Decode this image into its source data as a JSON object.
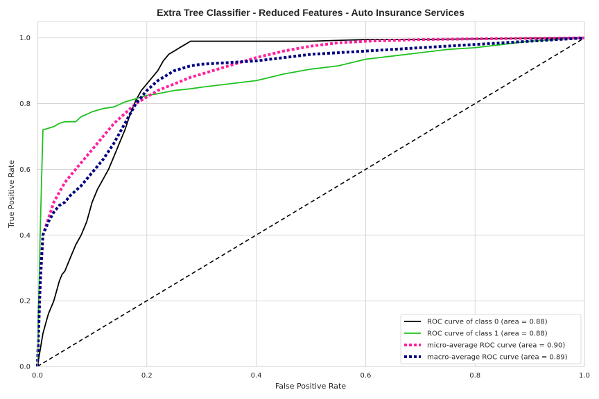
{
  "chart_data": {
    "type": "line",
    "title": "Extra Tree Classifier - Reduced Features - Auto Insurance Services",
    "xlabel": "False Positive Rate",
    "ylabel": "True Positive Rate",
    "xlim": [
      0.0,
      1.0
    ],
    "ylim": [
      0.0,
      1.05
    ],
    "xticks": [
      "0.0",
      "0.2",
      "0.4",
      "0.6",
      "0.8",
      "1.0"
    ],
    "yticks": [
      "0.0",
      "0.2",
      "0.4",
      "0.6",
      "0.8",
      "1.0"
    ],
    "grid": true,
    "legend_position": "lower-right",
    "series": [
      {
        "name": "ROC curve of class 0 (area = 0.88)",
        "color": "#000000",
        "style": "solid",
        "x": [
          0.0,
          0.005,
          0.01,
          0.015,
          0.02,
          0.03,
          0.04,
          0.045,
          0.05,
          0.06,
          0.07,
          0.08,
          0.09,
          0.1,
          0.11,
          0.12,
          0.13,
          0.14,
          0.15,
          0.16,
          0.17,
          0.18,
          0.19,
          0.2,
          0.21,
          0.22,
          0.23,
          0.24,
          0.25,
          0.26,
          0.27,
          0.28,
          0.3,
          0.4,
          0.5,
          0.6,
          0.7,
          0.8,
          0.9,
          1.0
        ],
        "y": [
          0.0,
          0.05,
          0.1,
          0.13,
          0.16,
          0.2,
          0.26,
          0.28,
          0.29,
          0.33,
          0.37,
          0.4,
          0.44,
          0.5,
          0.54,
          0.57,
          0.6,
          0.64,
          0.68,
          0.72,
          0.77,
          0.81,
          0.84,
          0.86,
          0.88,
          0.9,
          0.93,
          0.95,
          0.96,
          0.97,
          0.98,
          0.99,
          0.99,
          0.99,
          0.99,
          0.995,
          0.995,
          0.997,
          0.999,
          1.0
        ]
      },
      {
        "name": "ROC curve of class 1 (area = 0.88)",
        "color": "#1fc11f",
        "style": "solid",
        "x": [
          0.0,
          0.005,
          0.01,
          0.02,
          0.03,
          0.04,
          0.05,
          0.07,
          0.08,
          0.1,
          0.12,
          0.14,
          0.16,
          0.18,
          0.2,
          0.22,
          0.25,
          0.28,
          0.3,
          0.35,
          0.4,
          0.45,
          0.5,
          0.55,
          0.6,
          0.65,
          0.7,
          0.75,
          0.8,
          0.85,
          0.9,
          1.0
        ],
        "y": [
          0.0,
          0.4,
          0.72,
          0.725,
          0.73,
          0.74,
          0.745,
          0.745,
          0.76,
          0.775,
          0.785,
          0.79,
          0.805,
          0.815,
          0.825,
          0.83,
          0.84,
          0.845,
          0.85,
          0.86,
          0.87,
          0.89,
          0.905,
          0.915,
          0.935,
          0.945,
          0.955,
          0.965,
          0.97,
          0.98,
          0.99,
          1.0
        ]
      },
      {
        "name": "micro-average ROC curve (area = 0.90)",
        "color": "#ff1f9e",
        "style": "dotted",
        "x": [
          0.0,
          0.005,
          0.01,
          0.02,
          0.03,
          0.04,
          0.05,
          0.06,
          0.08,
          0.1,
          0.12,
          0.14,
          0.16,
          0.18,
          0.2,
          0.22,
          0.25,
          0.28,
          0.3,
          0.35,
          0.4,
          0.45,
          0.5,
          0.55,
          0.6,
          0.7,
          0.8,
          0.9,
          1.0
        ],
        "y": [
          0.0,
          0.25,
          0.4,
          0.45,
          0.5,
          0.53,
          0.56,
          0.58,
          0.62,
          0.66,
          0.7,
          0.74,
          0.77,
          0.8,
          0.82,
          0.84,
          0.86,
          0.88,
          0.89,
          0.915,
          0.94,
          0.96,
          0.975,
          0.985,
          0.99,
          0.995,
          0.997,
          0.999,
          1.0
        ]
      },
      {
        "name": "macro-average ROC curve (area = 0.89)",
        "color": "#000080",
        "style": "dotted",
        "x": [
          0.0,
          0.005,
          0.01,
          0.02,
          0.03,
          0.04,
          0.05,
          0.06,
          0.08,
          0.1,
          0.12,
          0.14,
          0.16,
          0.18,
          0.2,
          0.22,
          0.25,
          0.28,
          0.3,
          0.35,
          0.4,
          0.45,
          0.5,
          0.55,
          0.6,
          0.7,
          0.8,
          0.9,
          1.0
        ],
        "y": [
          0.0,
          0.25,
          0.4,
          0.44,
          0.47,
          0.49,
          0.5,
          0.52,
          0.55,
          0.59,
          0.63,
          0.68,
          0.74,
          0.8,
          0.84,
          0.87,
          0.9,
          0.915,
          0.92,
          0.925,
          0.93,
          0.94,
          0.95,
          0.955,
          0.96,
          0.97,
          0.98,
          0.99,
          1.0
        ]
      },
      {
        "name": "",
        "color": "#000000",
        "style": "dashed",
        "x": [
          0.0,
          1.0
        ],
        "y": [
          0.0,
          1.0
        ]
      }
    ]
  }
}
